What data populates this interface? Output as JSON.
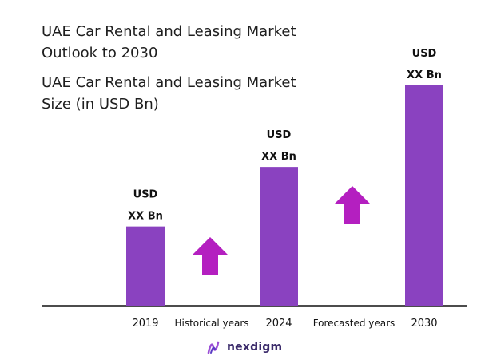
{
  "header": {
    "title": "UAE Car Rental and Leasing Market Outlook to 2030",
    "subtitle": "UAE Car Rental and Leasing Market Size (in USD Bn)"
  },
  "colors": {
    "bar": "#8a42c0",
    "arrow": "#b41fc0",
    "axis": "#111111",
    "logo": "#3a2a6a"
  },
  "chart_data": {
    "type": "bar",
    "title": "UAE Car Rental and Leasing Market Size (in USD Bn)",
    "categories": [
      "2019",
      "2024",
      "2030"
    ],
    "values": [
      0.36,
      0.63,
      1.0
    ],
    "value_note": "relative heights; values shown as placeholder labels",
    "data_labels": [
      [
        "USD",
        "XX Bn"
      ],
      [
        "USD",
        "XX Bn"
      ],
      [
        "USD",
        "XX Bn"
      ]
    ],
    "period_labels": [
      "Historical years",
      "Forecasted years"
    ],
    "ylim": [
      0,
      1
    ],
    "grid": false,
    "legend": "none"
  },
  "logo": {
    "text": "nexdigm",
    "icon": "nexdigm-logo-icon"
  }
}
